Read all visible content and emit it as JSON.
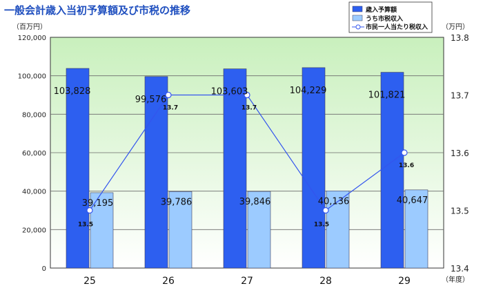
{
  "chart_data": {
    "type": "bar",
    "title": "一般会計歳入当初予算額及び市税の推移",
    "y_unit_left": "（百万円）",
    "y_unit_right": "（万円）",
    "x_unit": "（年度）",
    "categories": [
      "25",
      "26",
      "27",
      "28",
      "29"
    ],
    "series": [
      {
        "name": "歳入予算額",
        "kind": "bar",
        "axis": "left",
        "color": "#2d5ff0",
        "values": [
          103828,
          99576,
          103603,
          104229,
          101821
        ],
        "labels": [
          "103,828",
          "99,576",
          "103,603",
          "104,229",
          "101,821"
        ]
      },
      {
        "name": "うち市税収入",
        "kind": "bar",
        "axis": "left",
        "color": "#9ccbff",
        "values": [
          39195,
          39786,
          39846,
          40136,
          40647
        ],
        "labels": [
          "39,195",
          "39,786",
          "39,846",
          "40,136",
          "40,647"
        ]
      },
      {
        "name": "市民一人当たり税収入",
        "kind": "line",
        "axis": "right",
        "color": "#3355ee",
        "values": [
          13.5,
          13.7,
          13.7,
          13.5,
          13.6
        ],
        "labels": [
          "13.5",
          "13.7",
          "13.7",
          "13.5",
          "13.6"
        ]
      }
    ],
    "ylim_left": [
      0,
      120000
    ],
    "yticks_left": [
      "0",
      "20,000",
      "40,000",
      "60,000",
      "80,000",
      "100,000",
      "120,000"
    ],
    "ylim_right": [
      13.4,
      13.8
    ],
    "yticks_right": [
      "13.4",
      "13.5",
      "13.6",
      "13.7",
      "13.8"
    ],
    "legend_position": "top-right",
    "grid": true
  }
}
